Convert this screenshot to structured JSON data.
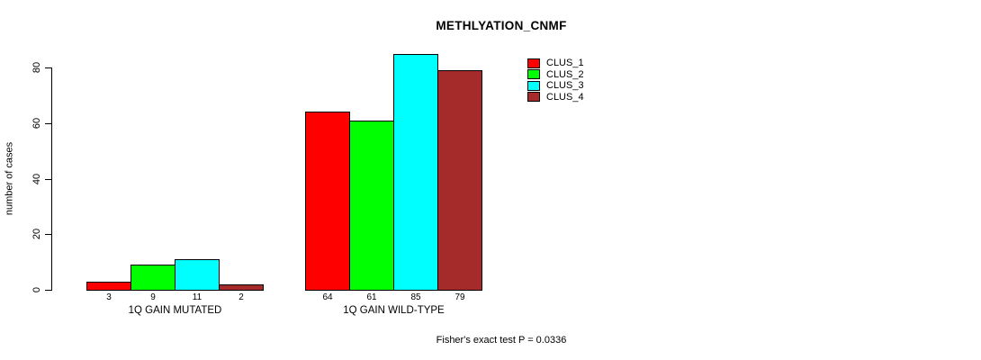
{
  "chart_data": {
    "type": "bar",
    "title": "METHLYATION_CNMF",
    "ylabel": "number of cases",
    "xlabel": "",
    "ylim": [
      0,
      80
    ],
    "yticks": [
      "0",
      "20",
      "40",
      "60",
      "80"
    ],
    "grid": false,
    "legend_position": "top-right-of-plot",
    "categories": [
      "1Q GAIN MUTATED",
      "1Q GAIN WILD-TYPE"
    ],
    "series": [
      {
        "name": "CLUS_1",
        "color": "#ff0000",
        "values": [
          3,
          64
        ]
      },
      {
        "name": "CLUS_2",
        "color": "#00ff00",
        "values": [
          9,
          61
        ]
      },
      {
        "name": "CLUS_3",
        "color": "#00ffff",
        "values": [
          11,
          85
        ]
      },
      {
        "name": "CLUS_4",
        "color": "#a52a2a",
        "values": [
          2,
          79
        ]
      }
    ],
    "bar_value_labels": [
      [
        "3",
        "9",
        "11",
        "2"
      ],
      [
        "64",
        "61",
        "85",
        "79"
      ]
    ],
    "annotation": "Fisher's exact test P = 0.0336",
    "bar_border_color": "#000000",
    "background_color": "#ffffff"
  }
}
